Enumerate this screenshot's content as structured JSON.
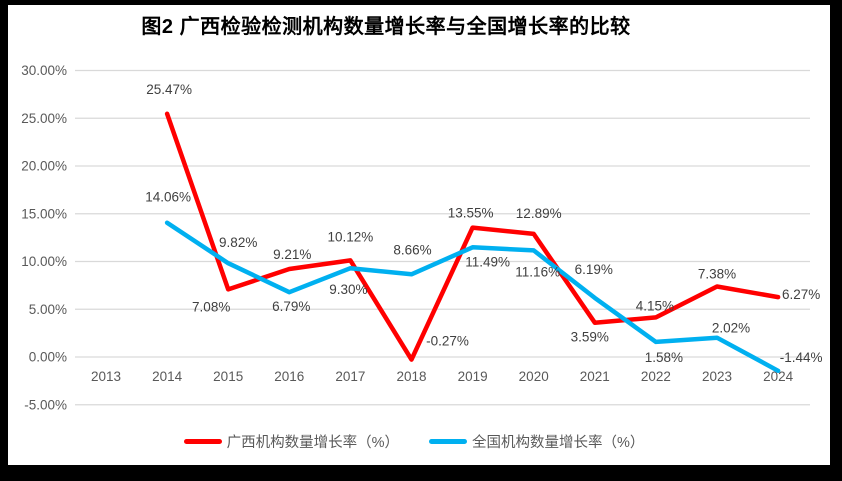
{
  "chart_data": {
    "type": "line",
    "title": "图2 广西检验检测机构数量增长率与全国增长率的比较",
    "categories": [
      "2013",
      "2014",
      "2015",
      "2016",
      "2017",
      "2018",
      "2019",
      "2020",
      "2021",
      "2022",
      "2023",
      "2024"
    ],
    "series": [
      {
        "name": "广西机构数量增长率（%）",
        "color": "#FF0000",
        "values": [
          null,
          25.47,
          7.08,
          9.21,
          10.12,
          -0.27,
          13.55,
          12.89,
          3.59,
          4.15,
          7.38,
          6.27
        ],
        "labels": [
          "",
          "25.47%",
          "7.08%",
          "9.21%",
          "10.12%",
          "-0.27%",
          "13.55%",
          "12.89%",
          "3.59%",
          "4.15%",
          "7.38%",
          "6.27%"
        ],
        "label_offsets": [
          [
            0,
            0
          ],
          [
            2,
            -20
          ],
          [
            -17,
            22
          ],
          [
            3,
            -10
          ],
          [
            0,
            -19
          ],
          [
            36,
            -14
          ],
          [
            -2,
            -10
          ],
          [
            5,
            -16
          ],
          [
            -5,
            19
          ],
          [
            -1,
            -7
          ],
          [
            0,
            -8
          ],
          [
            23,
            2
          ]
        ]
      },
      {
        "name": "全国机构数量增长率（%）",
        "color": "#00B0F0",
        "values": [
          null,
          14.06,
          9.82,
          6.79,
          9.3,
          8.66,
          11.49,
          11.16,
          6.19,
          1.58,
          2.02,
          -1.44
        ],
        "labels": [
          "",
          "14.06%",
          "9.82%",
          "6.79%",
          "9.30%",
          "8.66%",
          "11.49%",
          "11.16%",
          "6.19%",
          "1.58%",
          "2.02%",
          "-1.44%"
        ],
        "label_offsets": [
          [
            0,
            0
          ],
          [
            1,
            -21
          ],
          [
            10,
            -16
          ],
          [
            2,
            19
          ],
          [
            -2,
            26
          ],
          [
            1,
            -20
          ],
          [
            15,
            19
          ],
          [
            4,
            26
          ],
          [
            -1,
            -24
          ],
          [
            8,
            20
          ],
          [
            14,
            -5
          ],
          [
            23,
            -9
          ]
        ]
      }
    ],
    "ylim": [
      -5,
      30
    ],
    "ytick_step": 5,
    "yticks": [
      "30.00%",
      "25.00%",
      "20.00%",
      "15.00%",
      "10.00%",
      "5.00%",
      "0.00%",
      "-5.00%"
    ],
    "grid": true,
    "legend_position": "bottom",
    "line_width": 4.5,
    "colors": {
      "gridline": "#D9D9D9",
      "axis_tick_text": "#595959",
      "data_label_text": "#404040",
      "frame": "#000000",
      "plot_background": "#FFFFFF"
    }
  }
}
